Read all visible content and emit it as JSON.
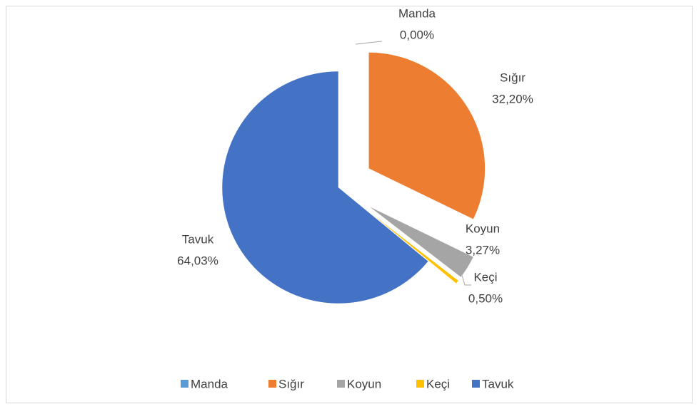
{
  "chart_data": {
    "type": "pie",
    "categories": [
      "Manda",
      "Sığır",
      "Koyun",
      "Keçi",
      "Tavuk"
    ],
    "values": [
      0,
      32.2,
      3.27,
      0.5,
      64.03
    ],
    "value_labels": [
      "0,00%",
      "32,20%",
      "3,27%",
      "0,50%",
      "64,03%"
    ],
    "colors": [
      "#5b9bd5",
      "#ed7d31",
      "#a5a5a5",
      "#ffc000",
      "#4472c4"
    ],
    "legend": "bottom"
  }
}
